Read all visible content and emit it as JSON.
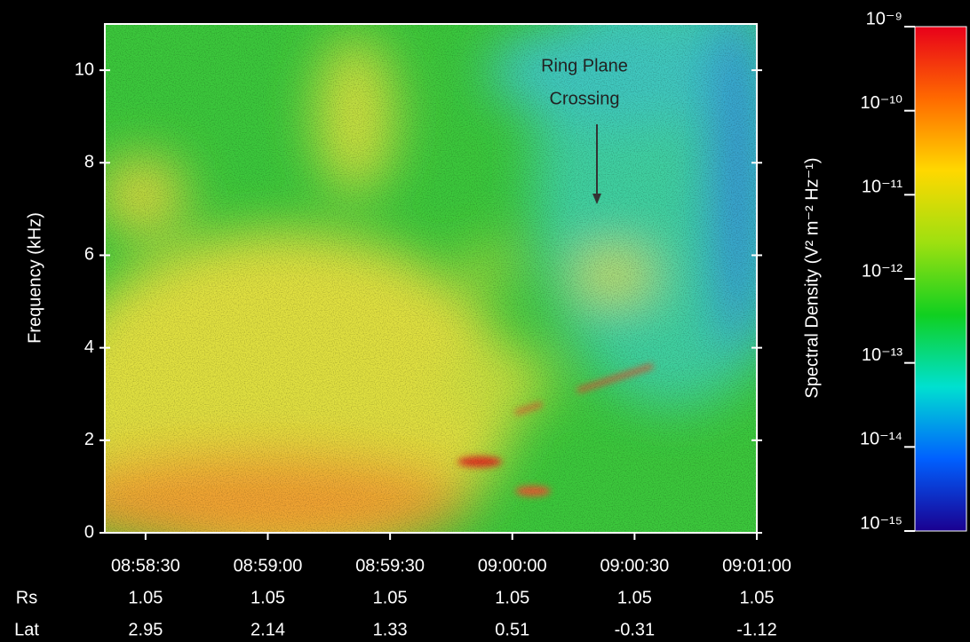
{
  "chart_data": {
    "type": "spectrogram",
    "ylabel": "Frequency (kHz)",
    "ylim": [
      0,
      11
    ],
    "yticks": [
      0,
      2,
      4,
      6,
      8,
      10
    ],
    "xlim": [
      "08:58:20",
      "09:01:00"
    ],
    "xticks": [
      "08:58:30",
      "08:59:00",
      "08:59:30",
      "09:00:00",
      "09:00:30",
      "09:01:00"
    ],
    "ephemeris": [
      {
        "label": "Rs",
        "values": [
          1.05,
          1.05,
          1.05,
          1.05,
          1.05,
          1.05
        ]
      },
      {
        "label": "Lat",
        "values": [
          2.95,
          2.14,
          1.33,
          0.51,
          -0.31,
          -1.12
        ]
      }
    ],
    "annotation": {
      "lines": [
        "Ring Plane",
        "Crossing"
      ]
    },
    "colorbar": {
      "label": "Spectral Density (V² m⁻² Hz⁻¹)",
      "log": true,
      "lim": [
        1e-15,
        1e-09
      ],
      "ticks": [
        {
          "value": 1e-09,
          "label": "10⁻⁹"
        },
        {
          "value": 1e-10,
          "label": "10⁻¹⁰"
        },
        {
          "value": 1e-11,
          "label": "10⁻¹¹"
        },
        {
          "value": 1e-12,
          "label": "10⁻¹²"
        },
        {
          "value": 1e-13,
          "label": "10⁻¹³"
        },
        {
          "value": 1e-14,
          "label": "10⁻¹⁴"
        },
        {
          "value": 1e-15,
          "label": "10⁻¹⁵"
        }
      ],
      "colormap": [
        "#e8001a",
        "#ff6a00",
        "#ffd800",
        "#9ee010",
        "#10d020",
        "#00e0d0",
        "#0060ff",
        "#1a0090"
      ]
    }
  }
}
